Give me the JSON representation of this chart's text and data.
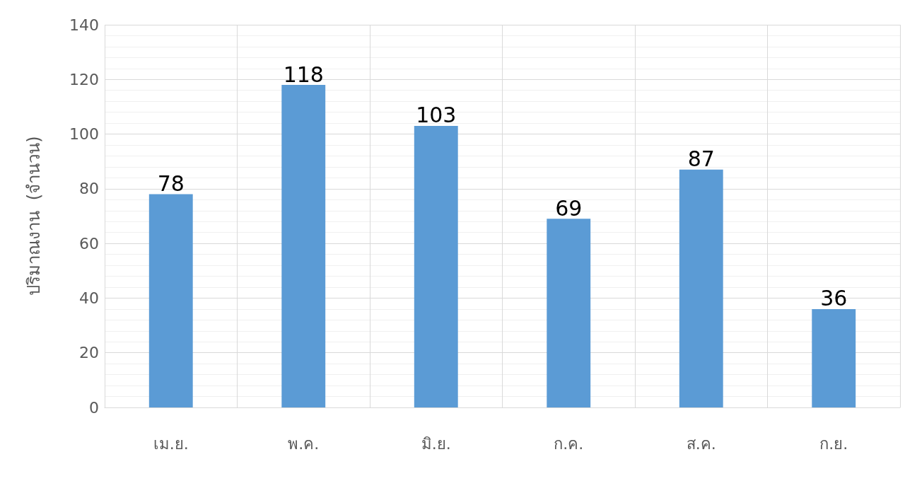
{
  "chart_data": {
    "type": "bar",
    "ylabel": "ปริมาณงาน  (จำนวน)",
    "categories": [
      "เม.ย.",
      "พ.ค.",
      "มิ.ย.",
      "ก.ค.",
      "ส.ค.",
      "ก.ย."
    ],
    "values": [
      78,
      118,
      103,
      69,
      87,
      36
    ],
    "color": "#5b9bd5",
    "ylim": [
      0,
      140
    ],
    "yticks": [
      0,
      20,
      40,
      60,
      80,
      100,
      120,
      140
    ],
    "grid": true,
    "data_labels": true
  }
}
